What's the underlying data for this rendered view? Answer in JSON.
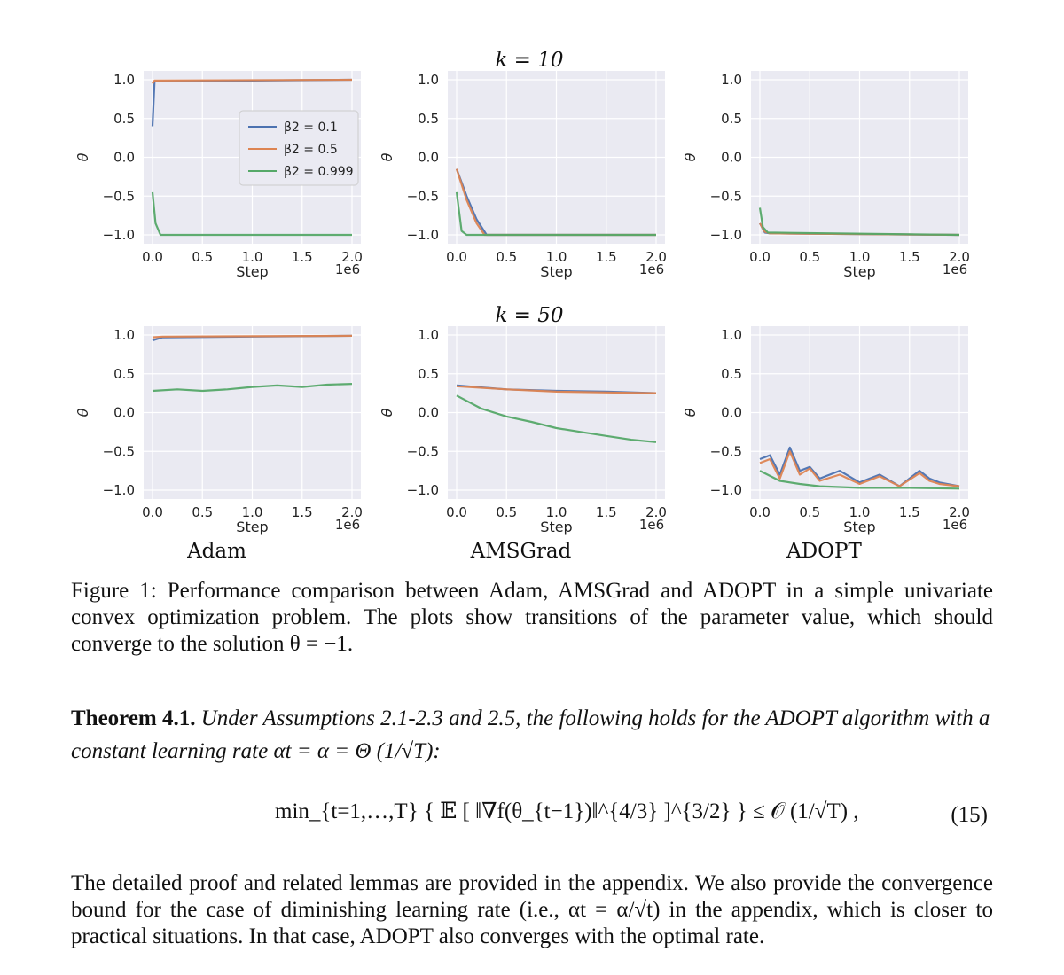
{
  "figure": {
    "row_titles": [
      "k = 10",
      "k = 50"
    ],
    "column_labels": [
      "Adam",
      "AMSGrad",
      "ADOPT"
    ],
    "ylabel": "θ",
    "xlabel": "Step",
    "x_offset_label": "1e6",
    "x_ticks": [
      "0.0",
      "0.5",
      "1.0",
      "1.5",
      "2.0"
    ],
    "y_ticks": [
      "1.0",
      "0.5",
      "0.0",
      "−0.5",
      "−1.0"
    ],
    "legend": [
      "β2 = 0.1",
      "β2 = 0.5",
      "β2 = 0.999"
    ],
    "colors": {
      "beta_0_1": "#4c72b0",
      "beta_0_5": "#dd8452",
      "beta_0_999": "#55a868",
      "panel_bg": "#eaeaf2"
    }
  },
  "chart_data": [
    {
      "type": "line",
      "optimizer": "Adam",
      "k": 10,
      "xlabel": "Step",
      "ylabel": "θ",
      "xlim": [
        0,
        2.0
      ],
      "ylim": [
        -1,
        1
      ],
      "grid": true,
      "legend": "center",
      "series": [
        {
          "name": "β2 = 0.1",
          "x": [
            0.0,
            0.02,
            2.0
          ],
          "y": [
            0.4,
            0.98,
            1.0
          ]
        },
        {
          "name": "β2 = 0.5",
          "x": [
            0.0,
            0.02,
            2.0
          ],
          "y": [
            0.95,
            0.99,
            1.0
          ]
        },
        {
          "name": "β2 = 0.999",
          "x": [
            0.0,
            0.03,
            0.08,
            2.0
          ],
          "y": [
            -0.45,
            -0.85,
            -1.0,
            -1.0
          ]
        }
      ]
    },
    {
      "type": "line",
      "optimizer": "AMSGrad",
      "k": 10,
      "xlabel": "Step",
      "ylabel": "θ",
      "xlim": [
        0,
        2.0
      ],
      "ylim": [
        -1,
        1
      ],
      "grid": true,
      "series": [
        {
          "name": "β2 = 0.1",
          "x": [
            0.0,
            0.1,
            0.2,
            0.3,
            2.0
          ],
          "y": [
            -0.15,
            -0.5,
            -0.8,
            -1.0,
            -1.0
          ]
        },
        {
          "name": "β2 = 0.5",
          "x": [
            0.0,
            0.1,
            0.2,
            0.28,
            2.0
          ],
          "y": [
            -0.15,
            -0.55,
            -0.85,
            -1.0,
            -1.0
          ]
        },
        {
          "name": "β2 = 0.999",
          "x": [
            0.0,
            0.05,
            0.1,
            2.0
          ],
          "y": [
            -0.45,
            -0.95,
            -1.0,
            -1.0
          ]
        }
      ]
    },
    {
      "type": "line",
      "optimizer": "ADOPT",
      "k": 10,
      "xlabel": "Step",
      "ylabel": "θ",
      "xlim": [
        0,
        2.0
      ],
      "ylim": [
        -1,
        1
      ],
      "grid": true,
      "series": [
        {
          "name": "β2 = 0.1",
          "x": [
            0.0,
            0.05,
            0.1,
            2.0
          ],
          "y": [
            -0.85,
            -0.97,
            -0.98,
            -1.0
          ]
        },
        {
          "name": "β2 = 0.5",
          "x": [
            0.0,
            0.05,
            0.1,
            2.0
          ],
          "y": [
            -0.85,
            -0.96,
            -0.98,
            -1.0
          ]
        },
        {
          "name": "β2 = 0.999",
          "x": [
            0.0,
            0.03,
            0.08,
            2.0
          ],
          "y": [
            -0.65,
            -0.9,
            -0.97,
            -1.0
          ]
        }
      ]
    },
    {
      "type": "line",
      "optimizer": "Adam",
      "k": 50,
      "xlabel": "Step",
      "ylabel": "θ",
      "xlim": [
        0,
        2.0
      ],
      "ylim": [
        -1,
        1
      ],
      "grid": true,
      "series": [
        {
          "name": "β2 = 0.1",
          "x": [
            0.0,
            0.1,
            2.0
          ],
          "y": [
            0.93,
            0.97,
            0.99
          ]
        },
        {
          "name": "β2 = 0.5",
          "x": [
            0.0,
            0.1,
            2.0
          ],
          "y": [
            0.97,
            0.98,
            0.99
          ]
        },
        {
          "name": "β2 = 0.999",
          "x": [
            0.0,
            0.25,
            0.5,
            0.75,
            1.0,
            1.25,
            1.5,
            1.75,
            2.0
          ],
          "y": [
            0.28,
            0.3,
            0.28,
            0.3,
            0.33,
            0.35,
            0.33,
            0.36,
            0.37
          ]
        }
      ]
    },
    {
      "type": "line",
      "optimizer": "AMSGrad",
      "k": 50,
      "xlabel": "Step",
      "ylabel": "θ",
      "xlim": [
        0,
        2.0
      ],
      "ylim": [
        -1,
        1
      ],
      "grid": true,
      "series": [
        {
          "name": "β2 = 0.1",
          "x": [
            0.0,
            0.5,
            1.0,
            1.5,
            2.0
          ],
          "y": [
            0.35,
            0.3,
            0.28,
            0.27,
            0.25
          ]
        },
        {
          "name": "β2 = 0.5",
          "x": [
            0.0,
            0.5,
            1.0,
            1.5,
            2.0
          ],
          "y": [
            0.34,
            0.3,
            0.27,
            0.26,
            0.25
          ]
        },
        {
          "name": "β2 = 0.999",
          "x": [
            0.0,
            0.25,
            0.5,
            0.75,
            1.0,
            1.25,
            1.5,
            1.75,
            2.0
          ],
          "y": [
            0.22,
            0.05,
            -0.05,
            -0.12,
            -0.2,
            -0.25,
            -0.3,
            -0.35,
            -0.38
          ]
        }
      ]
    },
    {
      "type": "line",
      "optimizer": "ADOPT",
      "k": 50,
      "xlabel": "Step",
      "ylabel": "θ",
      "xlim": [
        0,
        2.0
      ],
      "ylim": [
        -1,
        1
      ],
      "grid": true,
      "series": [
        {
          "name": "β2 = 0.1",
          "x": [
            0.0,
            0.1,
            0.2,
            0.3,
            0.4,
            0.5,
            0.6,
            0.8,
            1.0,
            1.2,
            1.4,
            1.6,
            1.7,
            1.8,
            2.0
          ],
          "y": [
            -0.6,
            -0.55,
            -0.8,
            -0.45,
            -0.75,
            -0.7,
            -0.85,
            -0.75,
            -0.9,
            -0.8,
            -0.95,
            -0.75,
            -0.85,
            -0.9,
            -0.95
          ]
        },
        {
          "name": "β2 = 0.5",
          "x": [
            0.0,
            0.1,
            0.2,
            0.3,
            0.4,
            0.5,
            0.6,
            0.8,
            1.0,
            1.2,
            1.4,
            1.6,
            1.7,
            1.8,
            2.0
          ],
          "y": [
            -0.65,
            -0.6,
            -0.85,
            -0.5,
            -0.8,
            -0.72,
            -0.88,
            -0.8,
            -0.92,
            -0.82,
            -0.95,
            -0.78,
            -0.88,
            -0.92,
            -0.95
          ]
        },
        {
          "name": "β2 = 0.999",
          "x": [
            0.0,
            0.2,
            0.4,
            0.6,
            1.0,
            1.5,
            2.0
          ],
          "y": [
            -0.75,
            -0.88,
            -0.92,
            -0.95,
            -0.97,
            -0.97,
            -0.98
          ]
        }
      ]
    }
  ],
  "caption": "Figure 1: Performance comparison between Adam, AMSGrad and ADOPT in a simple univariate convex optimization problem. The plots show transitions of the parameter value, which should converge to the solution θ = −1.",
  "theorem": {
    "lead": "Theorem 4.1.",
    "body": "Under Assumptions 2.1-2.3 and 2.5, the following holds for the ADOPT algorithm with a constant learning rate αt = α = Θ (1/√T):"
  },
  "equation": {
    "expression": "min_{t=1,…,T} { 𝔼 [ ‖∇f(θ_{t−1})‖^{4/3} ]^{3/2} } ≤ 𝒪 (1/√T) ,",
    "number": "(15)"
  },
  "paragraph": "The detailed proof and related lemmas are provided in the appendix. We also provide the convergence bound for the case of diminishing learning rate (i.e., αt = α/√t) in the appendix, which is closer to practical situations. In that case, ADOPT also converges with the optimal rate."
}
